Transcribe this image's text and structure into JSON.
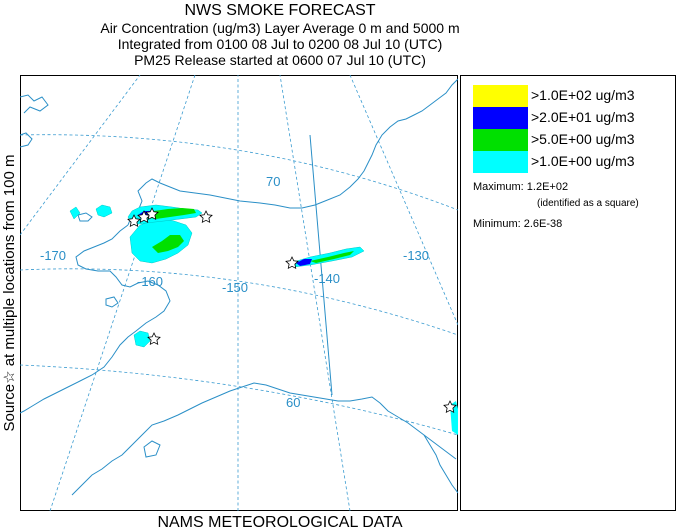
{
  "header": {
    "title": "NWS SMOKE FORECAST",
    "line1": "Air Concentration (ug/m3) Layer Average    0 m and  5000 m",
    "line2": "Integrated from 0100 08 Jul to 0200 08 Jul 10 (UTC)",
    "line3": "PM25 Release started at 0600 07 Jul 10 (UTC)"
  },
  "side_label": "Source☆ at multiple locations   from   100 m",
  "footer": "NAMS METEOROLOGICAL DATA",
  "map": {
    "latitude_labels": [
      "70",
      "60"
    ],
    "longitude_labels": [
      "-170",
      "-160",
      "-150",
      "-140",
      "-130"
    ],
    "colors": {
      "land": "#2a8fc7",
      "grid": "#3a9bd0",
      "level1": "#00ffff",
      "level2": "#00e000",
      "level3": "#0000ff",
      "level4": "#ffff00"
    }
  },
  "legend": {
    "entries": [
      {
        "label": ">1.0E+02 ug/m3",
        "color": "#ffff00"
      },
      {
        "label": ">2.0E+01 ug/m3",
        "color": "#0000ff"
      },
      {
        "label": ">5.0E+00 ug/m3",
        "color": "#00e000"
      },
      {
        "label": ">1.0E+00 ug/m3",
        "color": "#00ffff"
      }
    ],
    "maximum": "Maximum: 1.2E+02",
    "maximum_note": "(identified as a square)",
    "minimum": "Minimum: 2.6E-38"
  }
}
